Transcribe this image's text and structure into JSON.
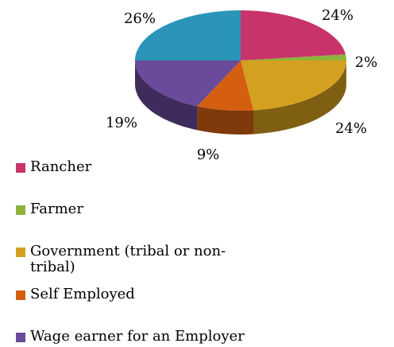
{
  "chart_data": {
    "type": "pie3d",
    "categories": [
      "Rancher",
      "Farmer",
      "Government (tribal or non-tribal)",
      "Self Employed",
      "Wage earner for an Employer",
      null
    ],
    "values": [
      24,
      2,
      24,
      9,
      19,
      26
    ],
    "value_labels": [
      "24%",
      "2%",
      "24%",
      "9%",
      "19%",
      "26%"
    ],
    "colors": [
      "#c8336c",
      "#8db33a",
      "#d4a020",
      "#d45f10",
      "#6a4a9a",
      "#2a95b8"
    ],
    "legend": "bottom-left"
  }
}
